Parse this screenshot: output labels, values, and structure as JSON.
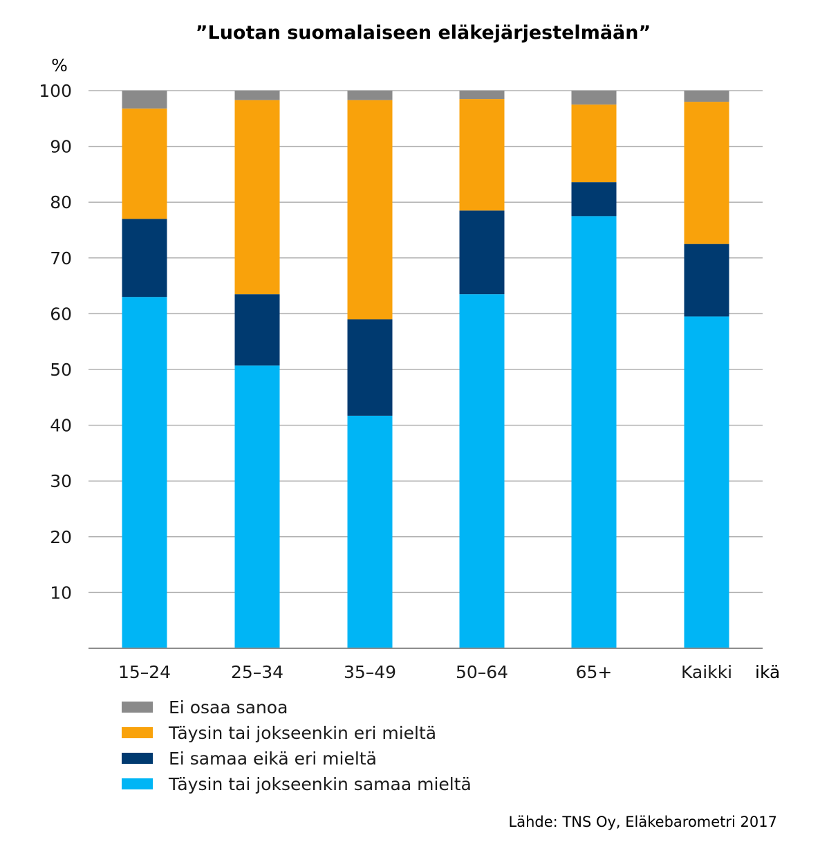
{
  "chart_data": {
    "type": "bar",
    "stacked": true,
    "title": "”Luotan suomalaiseen eläkejärjestelmään”",
    "ylabel": "%",
    "xlabel": "ikä",
    "ylim": [
      0,
      100
    ],
    "yticks": [
      10,
      20,
      30,
      40,
      50,
      60,
      70,
      80,
      90,
      100
    ],
    "grid": true,
    "categories": [
      "15–24",
      "25–34",
      "35–49",
      "50–64",
      "65+",
      "Kaikki"
    ],
    "series": [
      {
        "name": "Täysin tai jokseenkin samaa mieltä",
        "color": "#00b5f5",
        "values": [
          63,
          50.7,
          41.7,
          63.5,
          77.5,
          59.5
        ]
      },
      {
        "name": "Ei samaa eikä eri mieltä",
        "color": "#003a70",
        "values": [
          14,
          12.8,
          17.3,
          15,
          6.1,
          13
        ]
      },
      {
        "name": "Täysin tai jokseenkin eri mieltä",
        "color": "#f9a20b",
        "values": [
          19.8,
          34.8,
          39.3,
          20,
          13.9,
          25.5
        ]
      },
      {
        "name": "Ei osaa sanoa",
        "color": "#8a8a8a",
        "values": [
          3.2,
          1.7,
          1.7,
          1.5,
          2.5,
          2
        ]
      }
    ],
    "legend_order": [
      "Ei osaa sanoa",
      "Täysin tai jokseenkin eri mieltä",
      "Ei samaa eikä eri mieltä",
      "Täysin tai jokseenkin samaa mieltä"
    ],
    "legend_position": "bottom-left",
    "source": "Lähde: TNS Oy, Eläkebarometri 2017"
  },
  "colors": {
    "gridline": "#b0b0b0",
    "axis": "#8c8c8c",
    "text": "#1a1a1a"
  }
}
